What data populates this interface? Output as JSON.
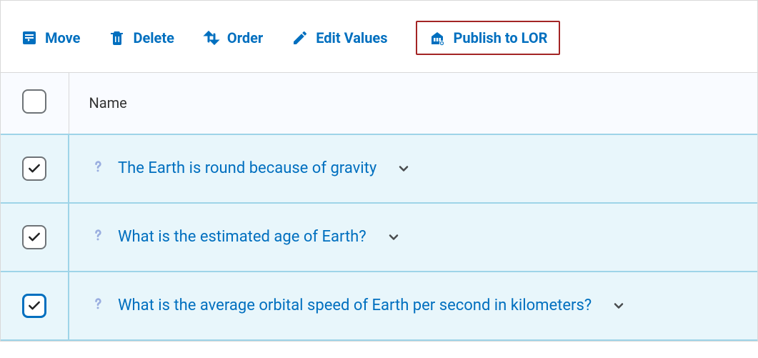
{
  "toolbar": {
    "move": {
      "label": "Move"
    },
    "delete": {
      "label": "Delete"
    },
    "order": {
      "label": "Order"
    },
    "edit_values": {
      "label": "Edit Values"
    },
    "publish_lor": {
      "label": "Publish to LOR",
      "highlighted": true
    }
  },
  "table": {
    "header": {
      "name_label": "Name"
    },
    "rows": [
      {
        "checked": true,
        "focused": false,
        "title": "The Earth is round because of gravity"
      },
      {
        "checked": true,
        "focused": false,
        "title": "What is the estimated age of Earth?"
      },
      {
        "checked": true,
        "focused": true,
        "title": "What is the average orbital speed of Earth per second in kilometers?"
      }
    ]
  },
  "colors": {
    "brand_blue": "#006fbf",
    "highlight_border": "#a32424",
    "row_bg": "#e8f6fb",
    "row_border": "#9ed4e8",
    "header_bg": "#f9fbff",
    "border_gray": "#d9d9d9",
    "text_dark": "#333333",
    "checkbox_border": "#6e7377",
    "question_icon": "#9aaee0"
  }
}
